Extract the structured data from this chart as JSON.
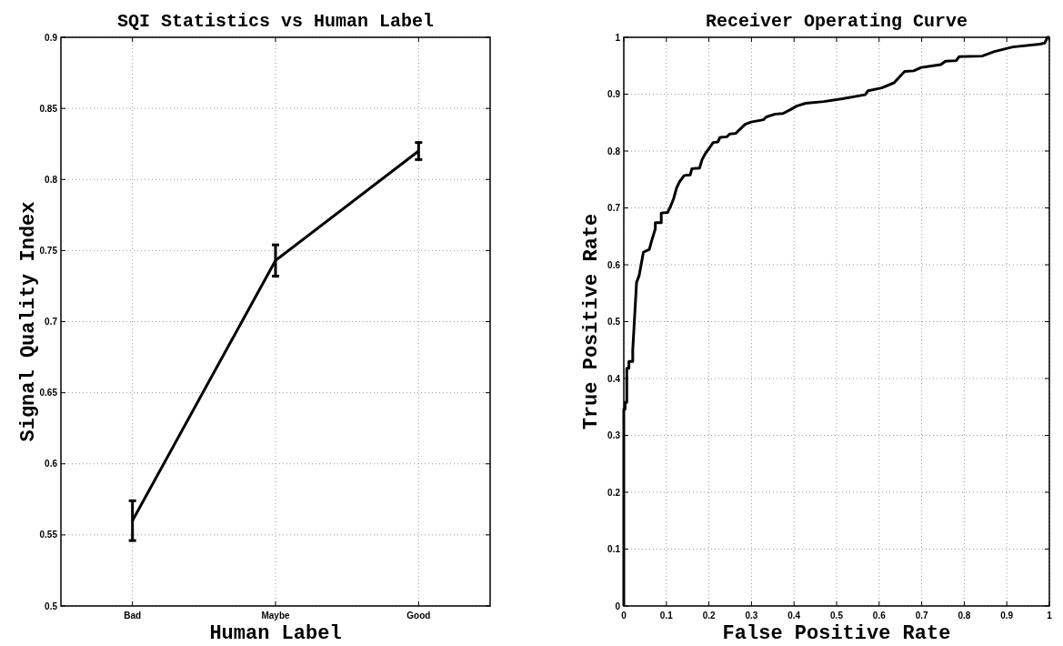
{
  "chart_data": [
    {
      "type": "line",
      "title": "SQI Statistics vs Human Label",
      "xlabel": "Human Label",
      "ylabel": "Signal Quality Index",
      "categories": [
        "Bad",
        "Maybe",
        "Good"
      ],
      "series": [
        {
          "color": "#000000",
          "values": [
            0.56,
            0.743,
            0.82
          ],
          "errors": [
            [
              0.546,
              0.574
            ],
            [
              0.732,
              0.754
            ],
            [
              0.814,
              0.826
            ]
          ]
        }
      ],
      "ylim": [
        0.5,
        0.9
      ],
      "yticks": [
        0.5,
        0.55,
        0.6,
        0.65,
        0.7,
        0.75,
        0.8,
        0.85,
        0.9
      ],
      "grid": true
    },
    {
      "type": "line",
      "title": "Receiver Operating Curve",
      "xlabel": "False Positive Rate",
      "ylabel": "True Positive Rate",
      "series": [
        {
          "color": "#000000",
          "x": [
            0,
            0,
            0.003,
            0.003,
            0.007,
            0.007,
            0.012,
            0.012,
            0.021,
            0.021,
            0.03,
            0.036,
            0.04,
            0.046,
            0.06,
            0.065,
            0.074,
            0.074,
            0.088,
            0.088,
            0.103,
            0.11,
            0.117,
            0.124,
            0.131,
            0.142,
            0.156,
            0.16,
            0.178,
            0.184,
            0.192,
            0.2,
            0.21,
            0.221,
            0.226,
            0.242,
            0.249,
            0.263,
            0.274,
            0.285,
            0.299,
            0.328,
            0.335,
            0.356,
            0.374,
            0.392,
            0.406,
            0.427,
            0.47,
            0.514,
            0.567,
            0.574,
            0.606,
            0.635,
            0.66,
            0.681,
            0.699,
            0.745,
            0.756,
            0.781,
            0.788,
            0.842,
            0.871,
            0.914,
            0.978,
            0.989,
            0.996,
            1
          ],
          "values": [
            0,
            0.346,
            0.346,
            0.358,
            0.358,
            0.418,
            0.418,
            0.43,
            0.43,
            0.45,
            0.569,
            0.581,
            0.597,
            0.622,
            0.627,
            0.641,
            0.663,
            0.674,
            0.674,
            0.691,
            0.692,
            0.703,
            0.716,
            0.735,
            0.746,
            0.757,
            0.758,
            0.769,
            0.77,
            0.785,
            0.796,
            0.804,
            0.815,
            0.816,
            0.824,
            0.825,
            0.83,
            0.831,
            0.839,
            0.847,
            0.851,
            0.855,
            0.86,
            0.865,
            0.866,
            0.873,
            0.879,
            0.884,
            0.887,
            0.892,
            0.899,
            0.906,
            0.911,
            0.92,
            0.94,
            0.941,
            0.947,
            0.952,
            0.958,
            0.959,
            0.966,
            0.967,
            0.975,
            0.983,
            0.988,
            0.99,
            1,
            1
          ]
        }
      ],
      "xlim": [
        0,
        1
      ],
      "xticks": [
        0,
        0.1,
        0.2,
        0.3,
        0.4,
        0.5,
        0.6,
        0.7,
        0.8,
        0.9,
        1
      ],
      "ylim": [
        0,
        1
      ],
      "yticks": [
        0,
        0.1,
        0.2,
        0.3,
        0.4,
        0.5,
        0.6,
        0.7,
        0.8,
        0.9,
        1
      ],
      "grid": true
    }
  ]
}
